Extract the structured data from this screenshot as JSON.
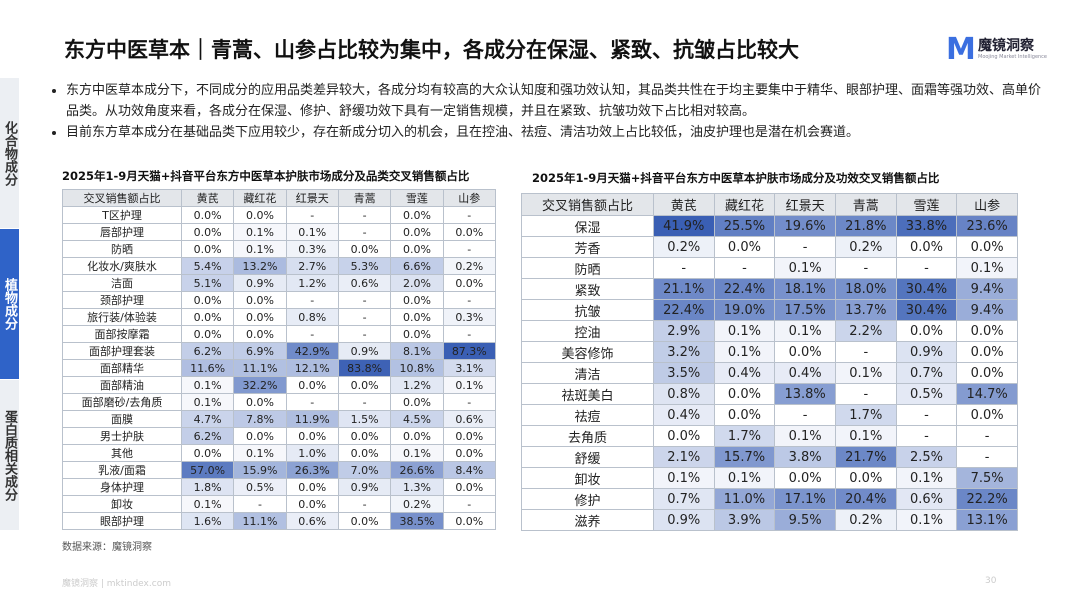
{
  "header": {
    "title": "东方中医草本｜青蒿、山参占比较为集中，各成分在保湿、紧致、抗皱占比较大",
    "logo": "魔镜洞察",
    "logo_sub": "Moojing Market Intelligence"
  },
  "sidebar": [
    "化合物成分",
    "植物成分",
    "蛋白质相关成分"
  ],
  "bullets": [
    "东方中医草本成分下，不同成分的应用品类差异较大，各成分均有较高的大众认知度和强功效认知，其品类共性在于均主要集中于精华、眼部护理、面霜等强功效、高单价品类。从功效角度来看，各成分在保湿、修护、舒缓功效下具有一定销售规模，并且在紧致、抗皱功效下占比相对较高。",
    "目前东方草本成分在基础品类下应用较少，存在新成分切入的机会，且在控油、祛痘、清洁功效上占比较低，油皮护理也是潜在机会赛道。"
  ],
  "tables": [
    {
      "title": "2025年1-9月天猫+抖音平台东方中医草本护肤市场成分及品类交叉销售额占比",
      "header": [
        "交叉销售额占比",
        "黄芪",
        "藏红花",
        "红景天",
        "青蒿",
        "雪莲",
        "山参"
      ],
      "rows": [
        [
          "T区护理",
          "0.0%",
          "0.0%",
          "-",
          "-",
          "0.0%",
          "-"
        ],
        [
          "唇部护理",
          "0.0%",
          "0.1%",
          "0.1%",
          "-",
          "0.0%",
          "0.0%"
        ],
        [
          "防晒",
          "0.0%",
          "0.1%",
          "0.3%",
          "0.0%",
          "0.0%",
          "-"
        ],
        [
          "化妆水/爽肤水",
          "5.4%",
          "13.2%",
          "2.7%",
          "5.3%",
          "6.6%",
          "0.2%"
        ],
        [
          "洁面",
          "5.1%",
          "0.9%",
          "1.2%",
          "0.6%",
          "2.0%",
          "0.0%"
        ],
        [
          "颈部护理",
          "0.0%",
          "0.0%",
          "-",
          "-",
          "0.0%",
          "-"
        ],
        [
          "旅行装/体验装",
          "0.0%",
          "0.0%",
          "0.8%",
          "-",
          "0.0%",
          "0.3%"
        ],
        [
          "面部按摩霜",
          "0.0%",
          "0.0%",
          "-",
          "-",
          "0.0%",
          "-"
        ],
        [
          "面部护理套装",
          "6.2%",
          "6.9%",
          "42.9%",
          "0.9%",
          "8.1%",
          "87.3%"
        ],
        [
          "面部精华",
          "11.6%",
          "11.1%",
          "12.1%",
          "83.8%",
          "10.8%",
          "3.1%"
        ],
        [
          "面部精油",
          "0.1%",
          "32.2%",
          "0.0%",
          "0.0%",
          "1.2%",
          "0.1%"
        ],
        [
          "面部磨砂/去角质",
          "0.1%",
          "0.0%",
          "-",
          "-",
          "0.0%",
          "-"
        ],
        [
          "面膜",
          "4.7%",
          "7.8%",
          "11.9%",
          "1.5%",
          "4.5%",
          "0.6%"
        ],
        [
          "男士护肤",
          "6.2%",
          "0.0%",
          "0.0%",
          "0.0%",
          "0.0%",
          "0.0%"
        ],
        [
          "其他",
          "0.0%",
          "0.1%",
          "1.0%",
          "0.0%",
          "0.1%",
          "0.0%"
        ],
        [
          "乳液/面霜",
          "57.0%",
          "15.9%",
          "26.3%",
          "7.0%",
          "26.6%",
          "8.4%"
        ],
        [
          "身体护理",
          "1.8%",
          "0.5%",
          "0.0%",
          "0.9%",
          "1.3%",
          "0.0%"
        ],
        [
          "卸妆",
          "0.1%",
          "-",
          "0.0%",
          "-",
          "0.2%",
          "-"
        ],
        [
          "眼部护理",
          "1.6%",
          "11.1%",
          "0.6%",
          "0.0%",
          "38.5%",
          "0.0%"
        ]
      ]
    },
    {
      "title": "2025年1-9月天猫+抖音平台东方中医草本护肤市场成分及功效交叉销售额占比",
      "header": [
        "交叉销售额占比",
        "黄芪",
        "藏红花",
        "红景天",
        "青蒿",
        "雪莲",
        "山参"
      ],
      "rows": [
        [
          "保湿",
          "41.9%",
          "25.5%",
          "19.6%",
          "21.8%",
          "33.8%",
          "23.6%"
        ],
        [
          "芳香",
          "0.2%",
          "0.0%",
          "-",
          "0.2%",
          "0.0%",
          "0.0%"
        ],
        [
          "防晒",
          "-",
          "-",
          "0.1%",
          "-",
          "-",
          "0.1%"
        ],
        [
          "紧致",
          "21.1%",
          "22.4%",
          "18.1%",
          "18.0%",
          "30.4%",
          "9.4%"
        ],
        [
          "抗皱",
          "22.4%",
          "19.0%",
          "17.5%",
          "13.7%",
          "30.4%",
          "9.4%"
        ],
        [
          "控油",
          "2.9%",
          "0.1%",
          "0.1%",
          "2.2%",
          "0.0%",
          "0.0%"
        ],
        [
          "美容修饰",
          "3.2%",
          "0.1%",
          "0.0%",
          "-",
          "0.9%",
          "0.0%"
        ],
        [
          "清洁",
          "3.5%",
          "0.4%",
          "0.4%",
          "0.1%",
          "0.7%",
          "0.0%"
        ],
        [
          "祛斑美白",
          "0.8%",
          "0.0%",
          "13.8%",
          "-",
          "0.5%",
          "14.7%"
        ],
        [
          "祛痘",
          "0.4%",
          "0.0%",
          "-",
          "1.7%",
          "-",
          "0.0%"
        ],
        [
          "去角质",
          "0.0%",
          "1.7%",
          "0.1%",
          "0.1%",
          "-",
          "-"
        ],
        [
          "舒缓",
          "2.1%",
          "15.7%",
          "3.8%",
          "21.7%",
          "2.5%",
          "-"
        ],
        [
          "卸妆",
          "0.1%",
          "0.1%",
          "0.0%",
          "0.0%",
          "0.1%",
          "7.5%"
        ],
        [
          "修护",
          "0.7%",
          "11.0%",
          "17.1%",
          "20.4%",
          "0.6%",
          "22.2%"
        ],
        [
          "滋养",
          "0.9%",
          "3.9%",
          "9.5%",
          "0.2%",
          "0.1%",
          "13.1%"
        ]
      ]
    }
  ],
  "source": "数据来源：魔镜洞察",
  "footer": {
    "left": "魔镜洞察 | mktindex.com",
    "page": "30"
  }
}
